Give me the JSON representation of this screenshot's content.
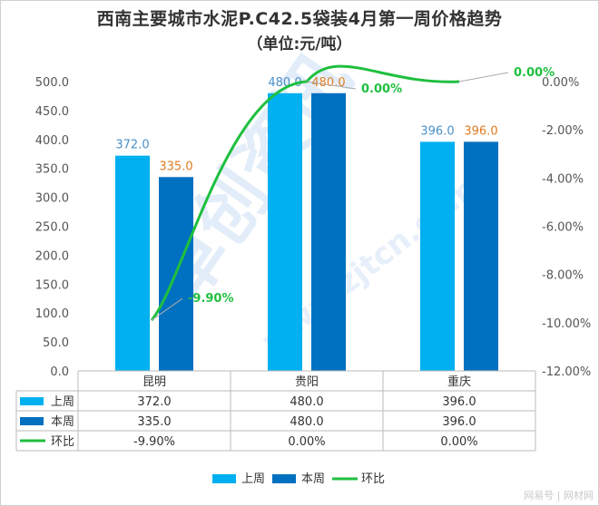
{
  "chart_data": {
    "type": "bar",
    "title": "西南主要城市水泥P.C42.5袋装4月第一周价格趋势",
    "subtitle": "（单位:元/吨）",
    "categories": [
      "昆明",
      "贵阳",
      "重庆"
    ],
    "series": [
      {
        "name": "上周",
        "kind": "bar",
        "axis": "left",
        "color": "#00b0f0",
        "values": [
          372.0,
          480.0,
          396.0
        ],
        "labels": [
          "372.0",
          "480.0",
          "396.0"
        ],
        "label_color": "#4a90c8"
      },
      {
        "name": "本周",
        "kind": "bar",
        "axis": "left",
        "color": "#0070c0",
        "values": [
          335.0,
          480.0,
          396.0
        ],
        "labels": [
          "335.0",
          "480.0",
          "396.0"
        ],
        "label_color": "#e07b1f"
      },
      {
        "name": "环比",
        "kind": "line",
        "axis": "right",
        "color": "#1fbf3f",
        "values": [
          -9.9,
          0.0,
          0.0
        ],
        "labels": [
          "-9.90%",
          "0.00%",
          "0.00%"
        ],
        "label_color": "#1fbf3f"
      }
    ],
    "y_left": {
      "min": 0,
      "max": 500,
      "step": 50,
      "ticks": [
        "0.0",
        "50.0",
        "100.0",
        "150.0",
        "200.0",
        "250.0",
        "300.0",
        "350.0",
        "400.0",
        "450.0",
        "500.0"
      ]
    },
    "y_right": {
      "min": -12,
      "max": 0,
      "step": 2,
      "ticks": [
        "0.00%",
        "-2.00%",
        "-4.00%",
        "-6.00%",
        "-8.00%",
        "-10.00%",
        "-12.00%"
      ]
    },
    "data_table": {
      "rows": [
        {
          "name": "上周",
          "cells": [
            "372.0",
            "480.0",
            "396.0"
          ]
        },
        {
          "name": "本周",
          "cells": [
            "335.0",
            "480.0",
            "396.0"
          ]
        },
        {
          "name": "环比",
          "cells": [
            "-9.90%",
            "0.00%",
            "0.00%"
          ]
        }
      ]
    },
    "legend": {
      "position": "bottom",
      "items": [
        "上周",
        "本周",
        "环比"
      ]
    },
    "grid": false
  },
  "watermark": {
    "text": "卓创资讯",
    "url": "www.zjtcn.com"
  },
  "footer": {
    "source": "网易号 | 网材网"
  }
}
